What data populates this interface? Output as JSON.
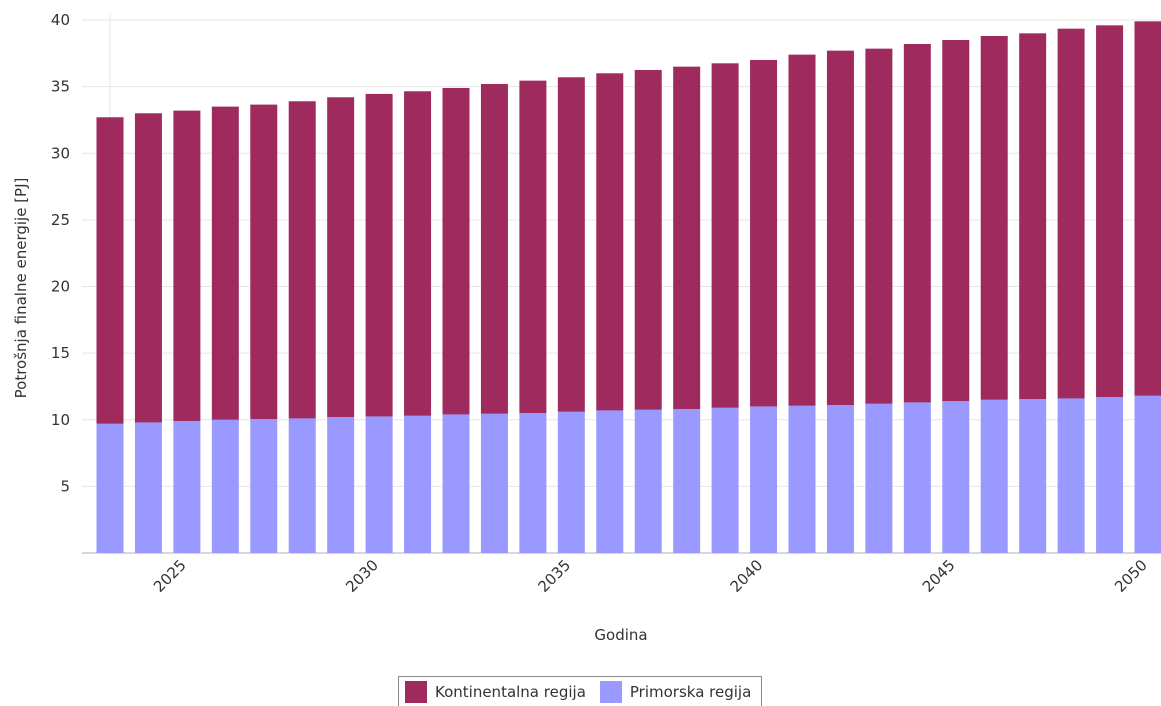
{
  "chart_data": {
    "type": "bar",
    "stacked": true,
    "title": "",
    "xlabel": "Godina",
    "ylabel": "Potrošnja finalne energije [PJ]",
    "ylim": [
      0,
      40
    ],
    "yticks": [
      5,
      10,
      15,
      20,
      25,
      30,
      35,
      40
    ],
    "xticks": [
      2025,
      2030,
      2035,
      2040,
      2045,
      2050
    ],
    "grid": true,
    "legend_position": "bottom",
    "categories": [
      2023,
      2024,
      2025,
      2026,
      2027,
      2028,
      2029,
      2030,
      2031,
      2032,
      2033,
      2034,
      2035,
      2036,
      2037,
      2038,
      2039,
      2040,
      2041,
      2042,
      2043,
      2044,
      2045,
      2046,
      2047,
      2048,
      2049,
      2050
    ],
    "series": [
      {
        "name": "Primorska regija",
        "color": "#9999ff",
        "values": [
          9.7,
          9.8,
          9.9,
          10.0,
          10.05,
          10.1,
          10.2,
          10.25,
          10.3,
          10.4,
          10.45,
          10.5,
          10.6,
          10.7,
          10.75,
          10.8,
          10.9,
          11.0,
          11.05,
          11.1,
          11.2,
          11.3,
          11.4,
          11.5,
          11.55,
          11.6,
          11.7,
          11.8
        ]
      },
      {
        "name": "Kontinentalna regija",
        "color": "#9e2a5e",
        "values": [
          23.0,
          23.2,
          23.3,
          23.5,
          23.6,
          23.8,
          24.0,
          24.2,
          24.35,
          24.5,
          24.75,
          24.95,
          25.1,
          25.3,
          25.5,
          25.7,
          25.85,
          26.0,
          26.35,
          26.6,
          26.65,
          26.9,
          27.1,
          27.3,
          27.45,
          27.75,
          27.9,
          28.1
        ]
      }
    ]
  }
}
